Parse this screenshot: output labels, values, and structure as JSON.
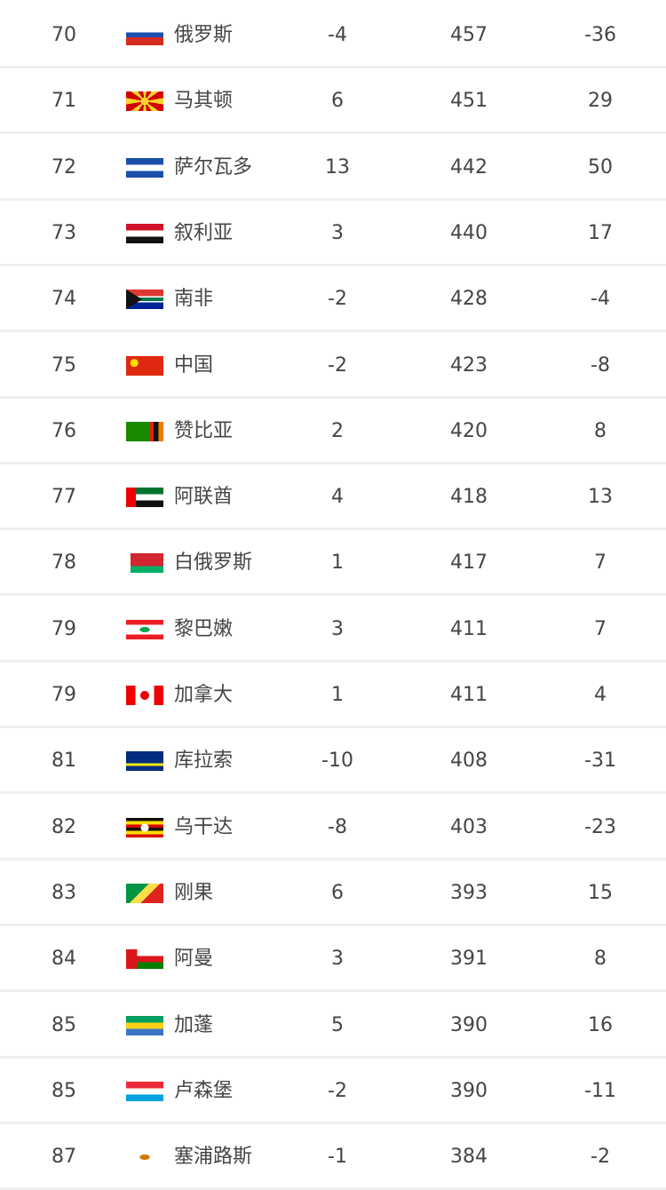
{
  "rows": [
    {
      "rank": "70",
      "flag": "ru",
      "country": "俄罗斯",
      "change": "-4",
      "points": "457",
      "points_change": "-36"
    },
    {
      "rank": "71",
      "flag": "mk",
      "country": "马其顿",
      "change": "6",
      "points": "451",
      "points_change": "29"
    },
    {
      "rank": "72",
      "flag": "sv",
      "country": "萨尔瓦多",
      "change": "13",
      "points": "442",
      "points_change": "50"
    },
    {
      "rank": "73",
      "flag": "sy",
      "country": "叙利亚",
      "change": "3",
      "points": "440",
      "points_change": "17"
    },
    {
      "rank": "74",
      "flag": "za",
      "country": "南非",
      "change": "-2",
      "points": "428",
      "points_change": "-4"
    },
    {
      "rank": "75",
      "flag": "cn",
      "country": "中国",
      "change": "-2",
      "points": "423",
      "points_change": "-8"
    },
    {
      "rank": "76",
      "flag": "zm",
      "country": "赞比亚",
      "change": "2",
      "points": "420",
      "points_change": "8"
    },
    {
      "rank": "77",
      "flag": "ae",
      "country": "阿联酋",
      "change": "4",
      "points": "418",
      "points_change": "13"
    },
    {
      "rank": "78",
      "flag": "by",
      "country": "白俄罗斯",
      "change": "1",
      "points": "417",
      "points_change": "7"
    },
    {
      "rank": "79",
      "flag": "lb",
      "country": "黎巴嫩",
      "change": "3",
      "points": "411",
      "points_change": "7"
    },
    {
      "rank": "79",
      "flag": "ca",
      "country": "加拿大",
      "change": "1",
      "points": "411",
      "points_change": "4"
    },
    {
      "rank": "81",
      "flag": "cw",
      "country": "库拉索",
      "change": "-10",
      "points": "408",
      "points_change": "-31"
    },
    {
      "rank": "82",
      "flag": "ug",
      "country": "乌干达",
      "change": "-8",
      "points": "403",
      "points_change": "-23"
    },
    {
      "rank": "83",
      "flag": "cg",
      "country": "刚果",
      "change": "6",
      "points": "393",
      "points_change": "15"
    },
    {
      "rank": "84",
      "flag": "om",
      "country": "阿曼",
      "change": "3",
      "points": "391",
      "points_change": "8"
    },
    {
      "rank": "85",
      "flag": "ga",
      "country": "加蓬",
      "change": "5",
      "points": "390",
      "points_change": "16"
    },
    {
      "rank": "85",
      "flag": "lu",
      "country": "卢森堡",
      "change": "-2",
      "points": "390",
      "points_change": "-11"
    },
    {
      "rank": "87",
      "flag": "cy",
      "country": "塞浦路斯",
      "change": "-1",
      "points": "384",
      "points_change": "-2"
    }
  ]
}
